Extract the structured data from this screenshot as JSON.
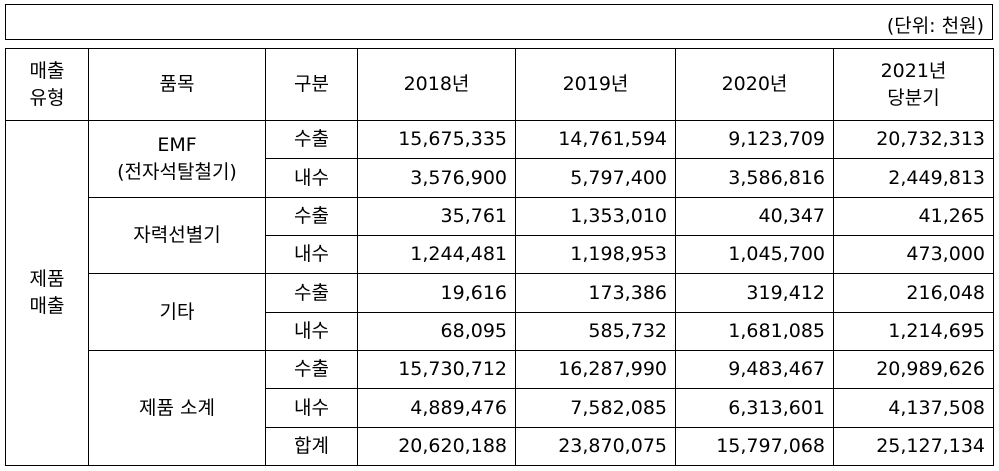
{
  "unit_label": "(단위: 천원)",
  "header": {
    "type": [
      "매출",
      "유형"
    ],
    "item": "품목",
    "division": "구분",
    "years": [
      "2018년",
      "2019년",
      "2020년"
    ],
    "last": [
      "2021년",
      "당분기"
    ]
  },
  "category": [
    "제품",
    "매출"
  ],
  "groups": [
    {
      "name": [
        "EMF",
        "(전자석탈철기)"
      ],
      "rows": [
        {
          "div": "수출",
          "vals": [
            "15,675,335",
            "14,761,594",
            "9,123,709",
            "20,732,313"
          ]
        },
        {
          "div": "내수",
          "vals": [
            "3,576,900",
            "5,797,400",
            "3,586,816",
            "2,449,813"
          ]
        }
      ]
    },
    {
      "name": [
        "자력선별기"
      ],
      "rows": [
        {
          "div": "수출",
          "vals": [
            "35,761",
            "1,353,010",
            "40,347",
            "41,265"
          ]
        },
        {
          "div": "내수",
          "vals": [
            "1,244,481",
            "1,198,953",
            "1,045,700",
            "473,000"
          ]
        }
      ]
    },
    {
      "name": [
        "기타"
      ],
      "rows": [
        {
          "div": "수출",
          "vals": [
            "19,616",
            "173,386",
            "319,412",
            "216,048"
          ]
        },
        {
          "div": "내수",
          "vals": [
            "68,095",
            "585,732",
            "1,681,085",
            "1,214,695"
          ]
        }
      ]
    },
    {
      "name": [
        "제품 소계"
      ],
      "rows": [
        {
          "div": "수출",
          "vals": [
            "15,730,712",
            "16,287,990",
            "9,483,467",
            "20,989,626"
          ]
        },
        {
          "div": "내수",
          "vals": [
            "4,889,476",
            "7,582,085",
            "6,313,601",
            "4,137,508"
          ]
        },
        {
          "div": "합계",
          "vals": [
            "20,620,188",
            "23,870,075",
            "15,797,068",
            "25,127,134"
          ]
        }
      ]
    }
  ]
}
